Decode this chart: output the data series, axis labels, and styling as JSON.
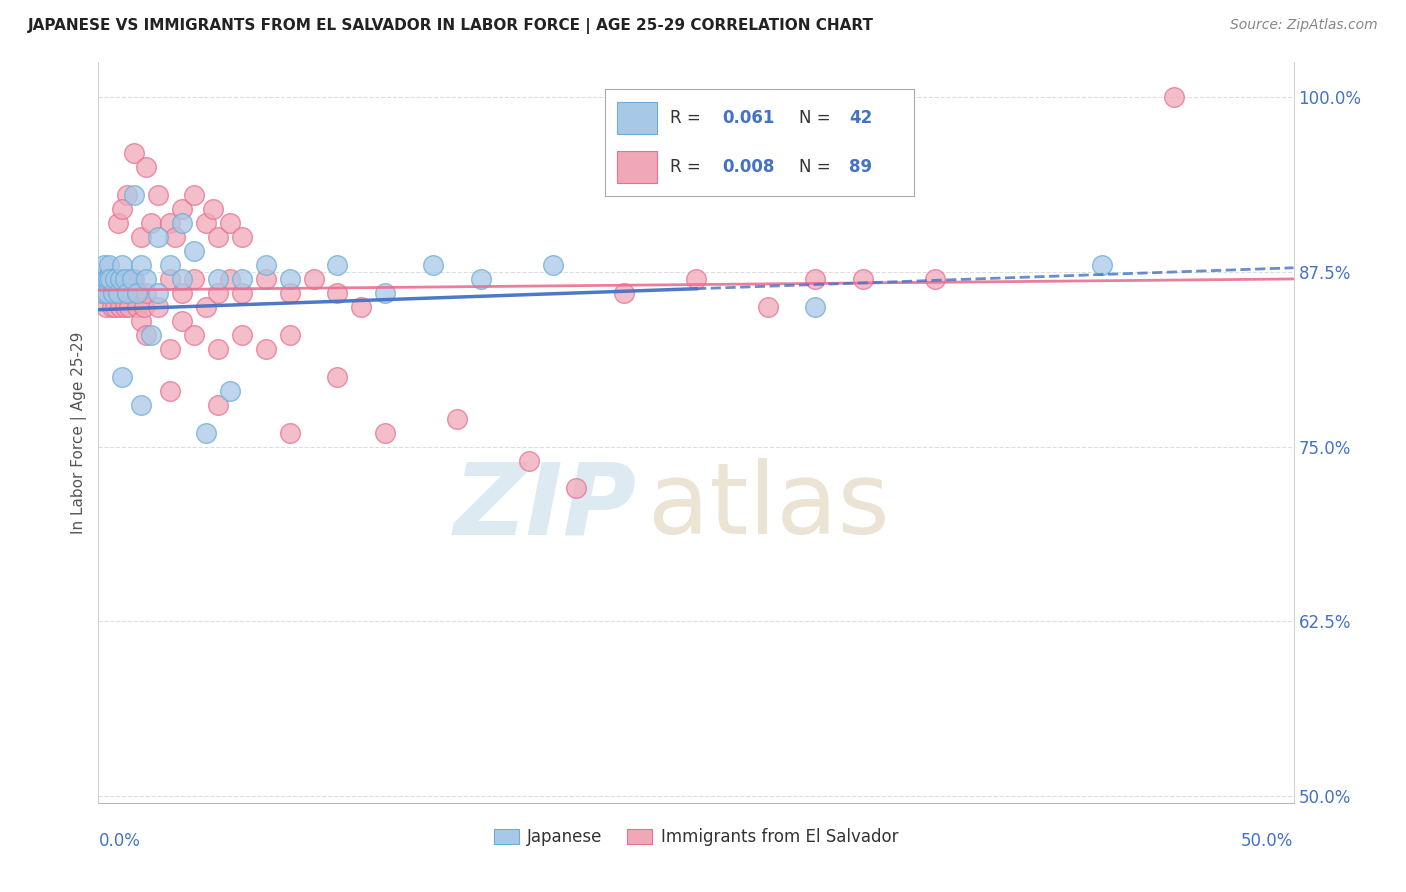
{
  "title": "JAPANESE VS IMMIGRANTS FROM EL SALVADOR IN LABOR FORCE | AGE 25-29 CORRELATION CHART",
  "source": "Source: ZipAtlas.com",
  "ylabel": "In Labor Force | Age 25-29",
  "color_japanese": "#a8c8e8",
  "color_japanese_edge": "#6aaed6",
  "color_salvador": "#f0a8b8",
  "color_salvador_edge": "#e87090",
  "color_japanese_line": "#4472c4",
  "color_salvador_line": "#e87090",
  "color_text_blue": "#4472c4",
  "color_grid": "#dddddd",
  "background_color": "#ffffff",
  "xmin": 0.0,
  "xmax": 50.0,
  "ymin": 49.5,
  "ymax": 102.5,
  "yticks": [
    50.0,
    62.5,
    75.0,
    87.5,
    100.0
  ],
  "jp_line_x0": 0.0,
  "jp_line_y0": 84.8,
  "jp_line_x1": 50.0,
  "jp_line_y1": 87.8,
  "sal_line_x0": 0.0,
  "sal_line_y0": 86.2,
  "sal_line_x1": 50.0,
  "sal_line_y1": 87.0,
  "jp_line_solid_end": 25.0,
  "watermark_zip_color": "#c8dce8",
  "watermark_atlas_color": "#d8c8a8"
}
